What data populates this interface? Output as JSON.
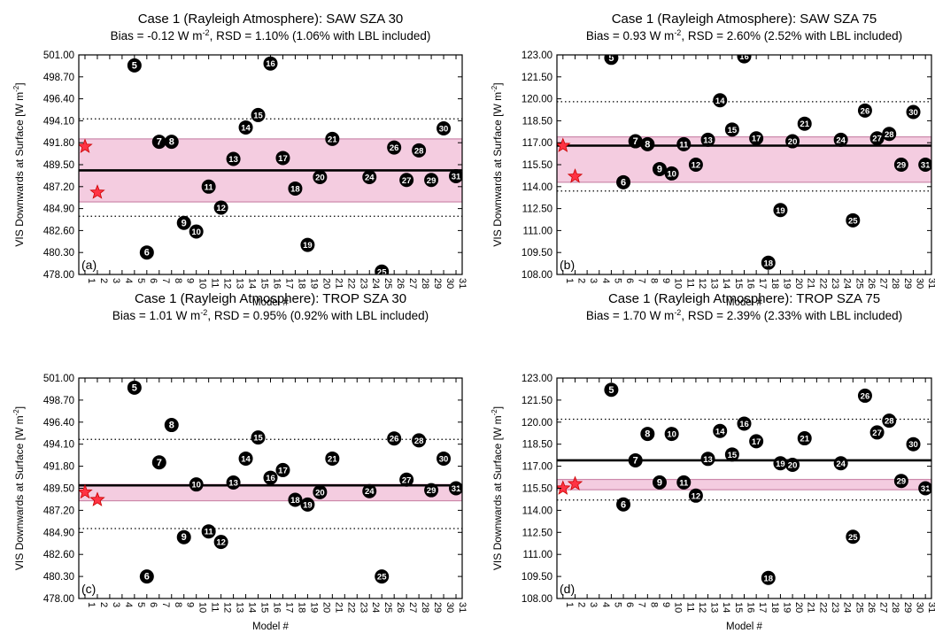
{
  "figure": {
    "panels": [
      {
        "label": "(a)",
        "title": "Case 1 (Rayleigh Atmosphere): SAW SZA 30",
        "subtitle_pre": "Bias = -0.12 W m",
        "subtitle_sup": "-2",
        "subtitle_post": ", RSD = 1.10% (1.06% with LBL included)"
      },
      {
        "label": "(b)",
        "title": "Case 1 (Rayleigh Atmosphere): SAW SZA 75",
        "subtitle_pre": "Bias = 0.93 W m",
        "subtitle_sup": "-2",
        "subtitle_post": ", RSD = 2.60% (2.52% with LBL included)"
      },
      {
        "label": "(c)",
        "title": "Case 1 (Rayleigh Atmosphere): TROP SZA 30",
        "subtitle_pre": "Bias = 1.01 W m",
        "subtitle_sup": "-2",
        "subtitle_post": ", RSD = 0.95% (0.92% with LBL included)"
      },
      {
        "label": "(d)",
        "title": "Case 1 (Rayleigh Atmosphere): TROP SZA 75",
        "subtitle_pre": "Bias = 1.70 W m",
        "subtitle_sup": "-2",
        "subtitle_post": ", RSD = 2.39% (2.33% with LBL included)"
      }
    ],
    "xlabel": "Model #",
    "ylabel": "VIS Downwards at Surface [W m",
    "ylabel_sup": "-2",
    "ylabel_end": "]"
  },
  "colors": {
    "band_fill": "#f4cce0",
    "band_edge": "#cc88aa",
    "marker": "#000000",
    "marker_text": "#ffffff",
    "star_fill": "#ff3344",
    "star_edge": "#cc0000"
  },
  "chart_data": [
    {
      "type": "scatter",
      "xlim": [
        0.5,
        31.5
      ],
      "ylim": [
        478.0,
        501.0
      ],
      "x_ticks": [
        1,
        2,
        3,
        4,
        5,
        6,
        7,
        8,
        9,
        10,
        11,
        12,
        13,
        14,
        15,
        16,
        17,
        18,
        19,
        20,
        21,
        22,
        23,
        24,
        25,
        26,
        27,
        28,
        29,
        30,
        31
      ],
      "y_ticks": [
        "478.00",
        "480.30",
        "482.60",
        "484.90",
        "487.20",
        "489.50",
        "491.80",
        "494.10",
        "496.40",
        "498.70",
        "501.00"
      ],
      "mean_line": 488.9,
      "band": [
        485.6,
        492.2
      ],
      "dotted_lines": [
        484.1,
        494.3
      ],
      "lbl_stars": [
        {
          "x": 1,
          "y": 491.4
        },
        {
          "x": 2,
          "y": 486.6
        }
      ],
      "points": [
        {
          "x": 5,
          "y": 499.9,
          "label": "5"
        },
        {
          "x": 6,
          "y": 480.3,
          "label": "6"
        },
        {
          "x": 7,
          "y": 491.9,
          "label": "7"
        },
        {
          "x": 8,
          "y": 491.9,
          "label": "8"
        },
        {
          "x": 9,
          "y": 483.4,
          "label": "9"
        },
        {
          "x": 10,
          "y": 482.5,
          "label": "10"
        },
        {
          "x": 11,
          "y": 487.2,
          "label": "11"
        },
        {
          "x": 12,
          "y": 485.0,
          "label": "12"
        },
        {
          "x": 13,
          "y": 490.1,
          "label": "13"
        },
        {
          "x": 14,
          "y": 493.4,
          "label": "14"
        },
        {
          "x": 15,
          "y": 494.7,
          "label": "15"
        },
        {
          "x": 16,
          "y": 500.1,
          "label": "16"
        },
        {
          "x": 17,
          "y": 490.2,
          "label": "17"
        },
        {
          "x": 18,
          "y": 487.0,
          "label": "18"
        },
        {
          "x": 19,
          "y": 481.1,
          "label": "19"
        },
        {
          "x": 20,
          "y": 488.2,
          "label": "20"
        },
        {
          "x": 21,
          "y": 492.2,
          "label": "21"
        },
        {
          "x": 24,
          "y": 488.2,
          "label": "24"
        },
        {
          "x": 25,
          "y": 478.3,
          "label": "25"
        },
        {
          "x": 26,
          "y": 491.3,
          "label": "26"
        },
        {
          "x": 27,
          "y": 487.9,
          "label": "27"
        },
        {
          "x": 28,
          "y": 491.0,
          "label": "28"
        },
        {
          "x": 29,
          "y": 487.9,
          "label": "29"
        },
        {
          "x": 30,
          "y": 493.3,
          "label": "30"
        },
        {
          "x": 31,
          "y": 488.3,
          "label": "31"
        }
      ]
    },
    {
      "type": "scatter",
      "xlim": [
        0.5,
        31.5
      ],
      "ylim": [
        108.0,
        123.0
      ],
      "x_ticks": [
        1,
        2,
        3,
        4,
        5,
        6,
        7,
        8,
        9,
        10,
        11,
        12,
        13,
        14,
        15,
        16,
        17,
        18,
        19,
        20,
        21,
        22,
        23,
        24,
        25,
        26,
        27,
        28,
        29,
        30,
        31
      ],
      "y_ticks": [
        "108.00",
        "109.50",
        "111.00",
        "112.50",
        "114.00",
        "115.50",
        "117.00",
        "118.50",
        "120.00",
        "121.50",
        "123.00"
      ],
      "mean_line": 116.8,
      "band": [
        114.3,
        117.4
      ],
      "dotted_lines": [
        113.7,
        119.8
      ],
      "lbl_stars": [
        {
          "x": 1,
          "y": 116.8
        },
        {
          "x": 2,
          "y": 114.7
        }
      ],
      "points": [
        {
          "x": 5,
          "y": 122.8,
          "label": "5"
        },
        {
          "x": 6,
          "y": 114.3,
          "label": "6"
        },
        {
          "x": 7,
          "y": 117.1,
          "label": "7"
        },
        {
          "x": 8,
          "y": 116.9,
          "label": "8"
        },
        {
          "x": 9,
          "y": 115.2,
          "label": "9"
        },
        {
          "x": 10,
          "y": 114.9,
          "label": "10"
        },
        {
          "x": 11,
          "y": 116.9,
          "label": "11"
        },
        {
          "x": 12,
          "y": 115.5,
          "label": "12"
        },
        {
          "x": 13,
          "y": 117.2,
          "label": "13"
        },
        {
          "x": 14,
          "y": 119.9,
          "label": "14"
        },
        {
          "x": 15,
          "y": 117.9,
          "label": "15"
        },
        {
          "x": 16,
          "y": 122.9,
          "label": "16"
        },
        {
          "x": 17,
          "y": 117.3,
          "label": "17"
        },
        {
          "x": 18,
          "y": 108.8,
          "label": "18"
        },
        {
          "x": 19,
          "y": 112.4,
          "label": "19"
        },
        {
          "x": 20,
          "y": 117.1,
          "label": "20"
        },
        {
          "x": 21,
          "y": 118.3,
          "label": "21"
        },
        {
          "x": 24,
          "y": 117.2,
          "label": "24"
        },
        {
          "x": 25,
          "y": 111.7,
          "label": "25"
        },
        {
          "x": 26,
          "y": 119.2,
          "label": "26"
        },
        {
          "x": 27,
          "y": 117.3,
          "label": "27"
        },
        {
          "x": 28,
          "y": 117.6,
          "label": "28"
        },
        {
          "x": 29,
          "y": 115.5,
          "label": "29"
        },
        {
          "x": 30,
          "y": 119.1,
          "label": "30"
        },
        {
          "x": 31,
          "y": 115.5,
          "label": "31"
        }
      ]
    },
    {
      "type": "scatter",
      "xlim": [
        0.5,
        31.5
      ],
      "ylim": [
        478.0,
        501.0
      ],
      "x_ticks": [
        1,
        2,
        3,
        4,
        5,
        6,
        7,
        8,
        9,
        10,
        11,
        12,
        13,
        14,
        15,
        16,
        17,
        18,
        19,
        20,
        21,
        22,
        23,
        24,
        25,
        26,
        27,
        28,
        29,
        30,
        31
      ],
      "y_ticks": [
        "478.00",
        "480.30",
        "482.60",
        "484.90",
        "487.20",
        "489.50",
        "491.80",
        "494.10",
        "496.40",
        "498.70",
        "501.00"
      ],
      "mean_line": 489.8,
      "band": [
        488.2,
        489.9
      ],
      "dotted_lines": [
        485.3,
        494.6
      ],
      "lbl_stars": [
        {
          "x": 1,
          "y": 489.1
        },
        {
          "x": 2,
          "y": 488.3
        }
      ],
      "points": [
        {
          "x": 5,
          "y": 500.0,
          "label": "5"
        },
        {
          "x": 6,
          "y": 480.3,
          "label": "6"
        },
        {
          "x": 7,
          "y": 492.2,
          "label": "7"
        },
        {
          "x": 8,
          "y": 496.1,
          "label": "8"
        },
        {
          "x": 9,
          "y": 484.4,
          "label": "9"
        },
        {
          "x": 10,
          "y": 489.9,
          "label": "10"
        },
        {
          "x": 11,
          "y": 485.0,
          "label": "11"
        },
        {
          "x": 12,
          "y": 483.9,
          "label": "12"
        },
        {
          "x": 13,
          "y": 490.1,
          "label": "13"
        },
        {
          "x": 14,
          "y": 492.6,
          "label": "14"
        },
        {
          "x": 15,
          "y": 494.8,
          "label": "15"
        },
        {
          "x": 16,
          "y": 490.6,
          "label": "16"
        },
        {
          "x": 17,
          "y": 491.4,
          "label": "17"
        },
        {
          "x": 18,
          "y": 488.3,
          "label": "18"
        },
        {
          "x": 19,
          "y": 487.8,
          "label": "19"
        },
        {
          "x": 20,
          "y": 489.1,
          "label": "20"
        },
        {
          "x": 21,
          "y": 492.6,
          "label": "21"
        },
        {
          "x": 24,
          "y": 489.2,
          "label": "24"
        },
        {
          "x": 25,
          "y": 480.3,
          "label": "25"
        },
        {
          "x": 26,
          "y": 494.7,
          "label": "26"
        },
        {
          "x": 27,
          "y": 490.4,
          "label": "27"
        },
        {
          "x": 28,
          "y": 494.5,
          "label": "28"
        },
        {
          "x": 29,
          "y": 489.3,
          "label": "29"
        },
        {
          "x": 30,
          "y": 492.6,
          "label": "30"
        },
        {
          "x": 31,
          "y": 489.5,
          "label": "31"
        }
      ]
    },
    {
      "type": "scatter",
      "xlim": [
        0.5,
        31.5
      ],
      "ylim": [
        108.0,
        123.0
      ],
      "x_ticks": [
        1,
        2,
        3,
        4,
        5,
        6,
        7,
        8,
        9,
        10,
        11,
        12,
        13,
        14,
        15,
        16,
        17,
        18,
        19,
        20,
        21,
        22,
        23,
        24,
        25,
        26,
        27,
        28,
        29,
        30,
        31
      ],
      "y_ticks": [
        "108.00",
        "109.50",
        "111.00",
        "112.50",
        "114.00",
        "115.50",
        "117.00",
        "118.50",
        "120.00",
        "121.50",
        "123.00"
      ],
      "mean_line": 117.4,
      "band": [
        115.4,
        116.1
      ],
      "dotted_lines": [
        114.7,
        120.2
      ],
      "lbl_stars": [
        {
          "x": 1,
          "y": 115.5
        },
        {
          "x": 2,
          "y": 115.8
        }
      ],
      "points": [
        {
          "x": 5,
          "y": 122.2,
          "label": "5"
        },
        {
          "x": 6,
          "y": 114.4,
          "label": "6"
        },
        {
          "x": 7,
          "y": 117.4,
          "label": "7"
        },
        {
          "x": 8,
          "y": 119.2,
          "label": "8"
        },
        {
          "x": 9,
          "y": 115.9,
          "label": "9"
        },
        {
          "x": 10,
          "y": 119.2,
          "label": "10"
        },
        {
          "x": 11,
          "y": 115.9,
          "label": "11"
        },
        {
          "x": 12,
          "y": 115.0,
          "label": "12"
        },
        {
          "x": 13,
          "y": 117.5,
          "label": "13"
        },
        {
          "x": 14,
          "y": 119.4,
          "label": "14"
        },
        {
          "x": 15,
          "y": 117.8,
          "label": "15"
        },
        {
          "x": 16,
          "y": 119.9,
          "label": "16"
        },
        {
          "x": 17,
          "y": 118.7,
          "label": "17"
        },
        {
          "x": 18,
          "y": 109.4,
          "label": "18"
        },
        {
          "x": 19,
          "y": 117.2,
          "label": "19"
        },
        {
          "x": 20,
          "y": 117.1,
          "label": "20"
        },
        {
          "x": 21,
          "y": 118.9,
          "label": "21"
        },
        {
          "x": 24,
          "y": 117.2,
          "label": "24"
        },
        {
          "x": 25,
          "y": 112.2,
          "label": "25"
        },
        {
          "x": 26,
          "y": 121.8,
          "label": "26"
        },
        {
          "x": 27,
          "y": 119.3,
          "label": "27"
        },
        {
          "x": 28,
          "y": 120.1,
          "label": "28"
        },
        {
          "x": 29,
          "y": 116.0,
          "label": "29"
        },
        {
          "x": 30,
          "y": 118.5,
          "label": "30"
        },
        {
          "x": 31,
          "y": 115.5,
          "label": "31"
        }
      ]
    }
  ]
}
